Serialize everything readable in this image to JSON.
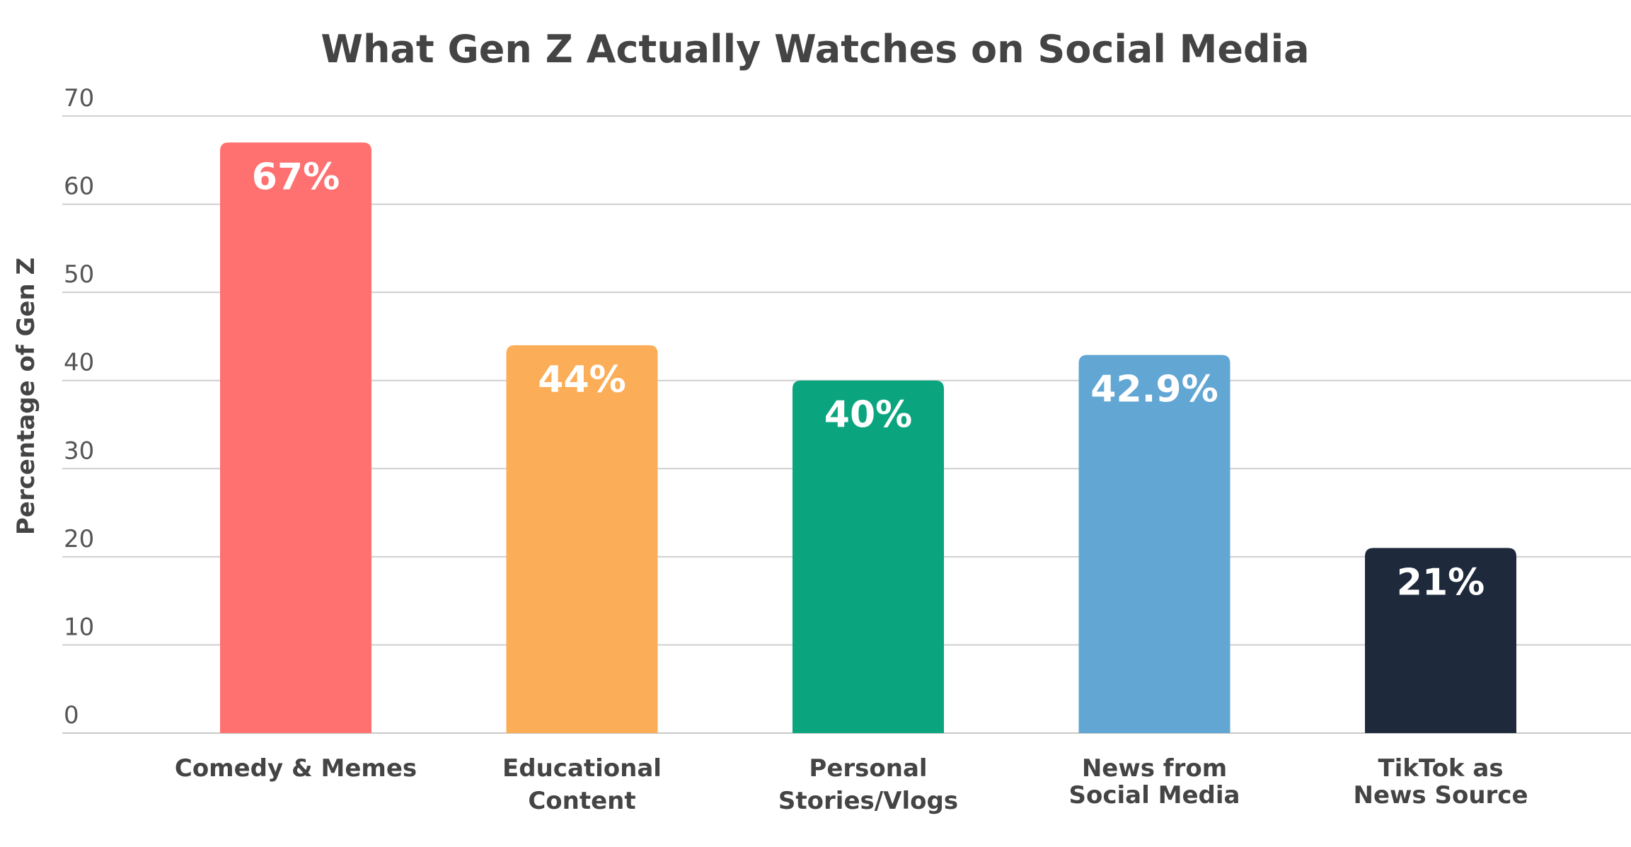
{
  "chart_data": {
    "type": "bar",
    "title": "What Gen Z Actually Watches on Social Media",
    "xlabel": "",
    "ylabel": "Percentage of Gen Z",
    "ylim": [
      0,
      70
    ],
    "yticks": [
      "0",
      "10",
      "20",
      "30",
      "40",
      "50",
      "60",
      "70"
    ],
    "grid": true,
    "categories": [
      [
        "Comedy & Memes"
      ],
      [
        "Educational",
        "Content"
      ],
      [
        "Personal",
        "Stories/Vlogs"
      ],
      [
        "News from",
        "Social Media"
      ],
      [
        "TikTok as",
        "News Source"
      ]
    ],
    "values": [
      67,
      44,
      40,
      42.9,
      21
    ],
    "data_labels": [
      "67%",
      "44%",
      "40%",
      "42.9%",
      "21%"
    ],
    "colors": [
      "#ff7070",
      "#fcad58",
      "#0aa57e",
      "#62a6d4",
      "#1e2a3c"
    ]
  }
}
